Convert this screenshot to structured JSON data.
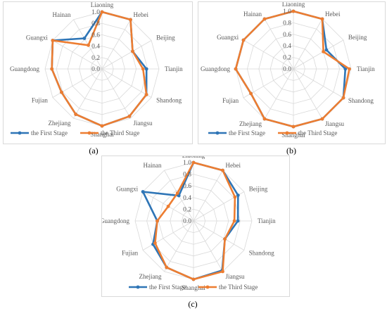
{
  "chart_data": [
    {
      "type": "radar",
      "panel_label": "(a)",
      "categories": [
        "Liaoning",
        "Hebei",
        "Beijing",
        "Tianjin",
        "Shandong",
        "Jiangsu",
        "Shanghai",
        "Zhejiang",
        "Fujian",
        "Guangdong",
        "Guangxi",
        "Hainan"
      ],
      "ticks": [
        "0.0",
        "0.2",
        "0.4",
        "0.6",
        "0.8",
        "1.0"
      ],
      "rlim": [
        0,
        1.0
      ],
      "grid": true,
      "legend_position": "bottom",
      "series": [
        {
          "name": "the First Stage",
          "color": "#2e75b6",
          "values": [
            1.0,
            1.0,
            0.62,
            0.78,
            0.9,
            0.96,
            1.0,
            0.92,
            0.82,
            0.88,
            1.0,
            0.62
          ]
        },
        {
          "name": "the Third Stage",
          "color": "#ed7d31",
          "values": [
            1.0,
            1.0,
            0.62,
            0.72,
            0.9,
            0.96,
            1.0,
            0.92,
            0.82,
            0.88,
            1.0,
            0.48
          ]
        }
      ]
    },
    {
      "type": "radar",
      "panel_label": "(b)",
      "categories": [
        "Liaoning",
        "Hebei",
        "Beijing",
        "Tianjin",
        "Shandong",
        "Jiangsu",
        "Shanghai",
        "Zhejiang",
        "Fujian",
        "Guangdong",
        "Guangxi",
        "Hainan"
      ],
      "ticks": [
        "0.0",
        "0.2",
        "0.4",
        "0.6",
        "0.8",
        "1.0"
      ],
      "rlim": [
        0,
        1.0
      ],
      "grid": true,
      "legend_position": "bottom",
      "series": [
        {
          "name": "the First Stage",
          "color": "#2e75b6",
          "values": [
            1.0,
            1.0,
            0.66,
            0.9,
            1.0,
            1.0,
            1.0,
            1.0,
            0.85,
            1.0,
            1.0,
            1.0
          ]
        },
        {
          "name": "the Third Stage",
          "color": "#ed7d31",
          "values": [
            1.0,
            1.0,
            0.6,
            0.97,
            1.0,
            1.0,
            1.0,
            1.0,
            0.85,
            1.0,
            1.0,
            1.0
          ]
        }
      ]
    },
    {
      "type": "radar",
      "panel_label": "(c)",
      "categories": [
        "Liaoning",
        "Hebei",
        "Beijing",
        "Tianjin",
        "Shandong",
        "Jiangsu",
        "Shanghai",
        "Zhejiang",
        "Fujian",
        "Guangdong",
        "Guangxi",
        "Hainan"
      ],
      "ticks": [
        "0.0",
        "0.2",
        "0.4",
        "0.6",
        "0.8",
        "1.0"
      ],
      "rlim": [
        0,
        1.0
      ],
      "grid": true,
      "legend_position": "bottom",
      "series": [
        {
          "name": "the First Stage",
          "color": "#2e75b6",
          "values": [
            1.0,
            1.0,
            0.88,
            0.76,
            0.62,
            0.98,
            1.0,
            0.92,
            0.8,
            0.62,
            1.0,
            0.5
          ]
        },
        {
          "name": "the Third Stage",
          "color": "#ed7d31",
          "values": [
            1.0,
            1.0,
            0.82,
            0.7,
            0.62,
            1.0,
            1.0,
            0.92,
            0.76,
            0.62,
            0.5,
            0.55
          ]
        }
      ]
    }
  ]
}
